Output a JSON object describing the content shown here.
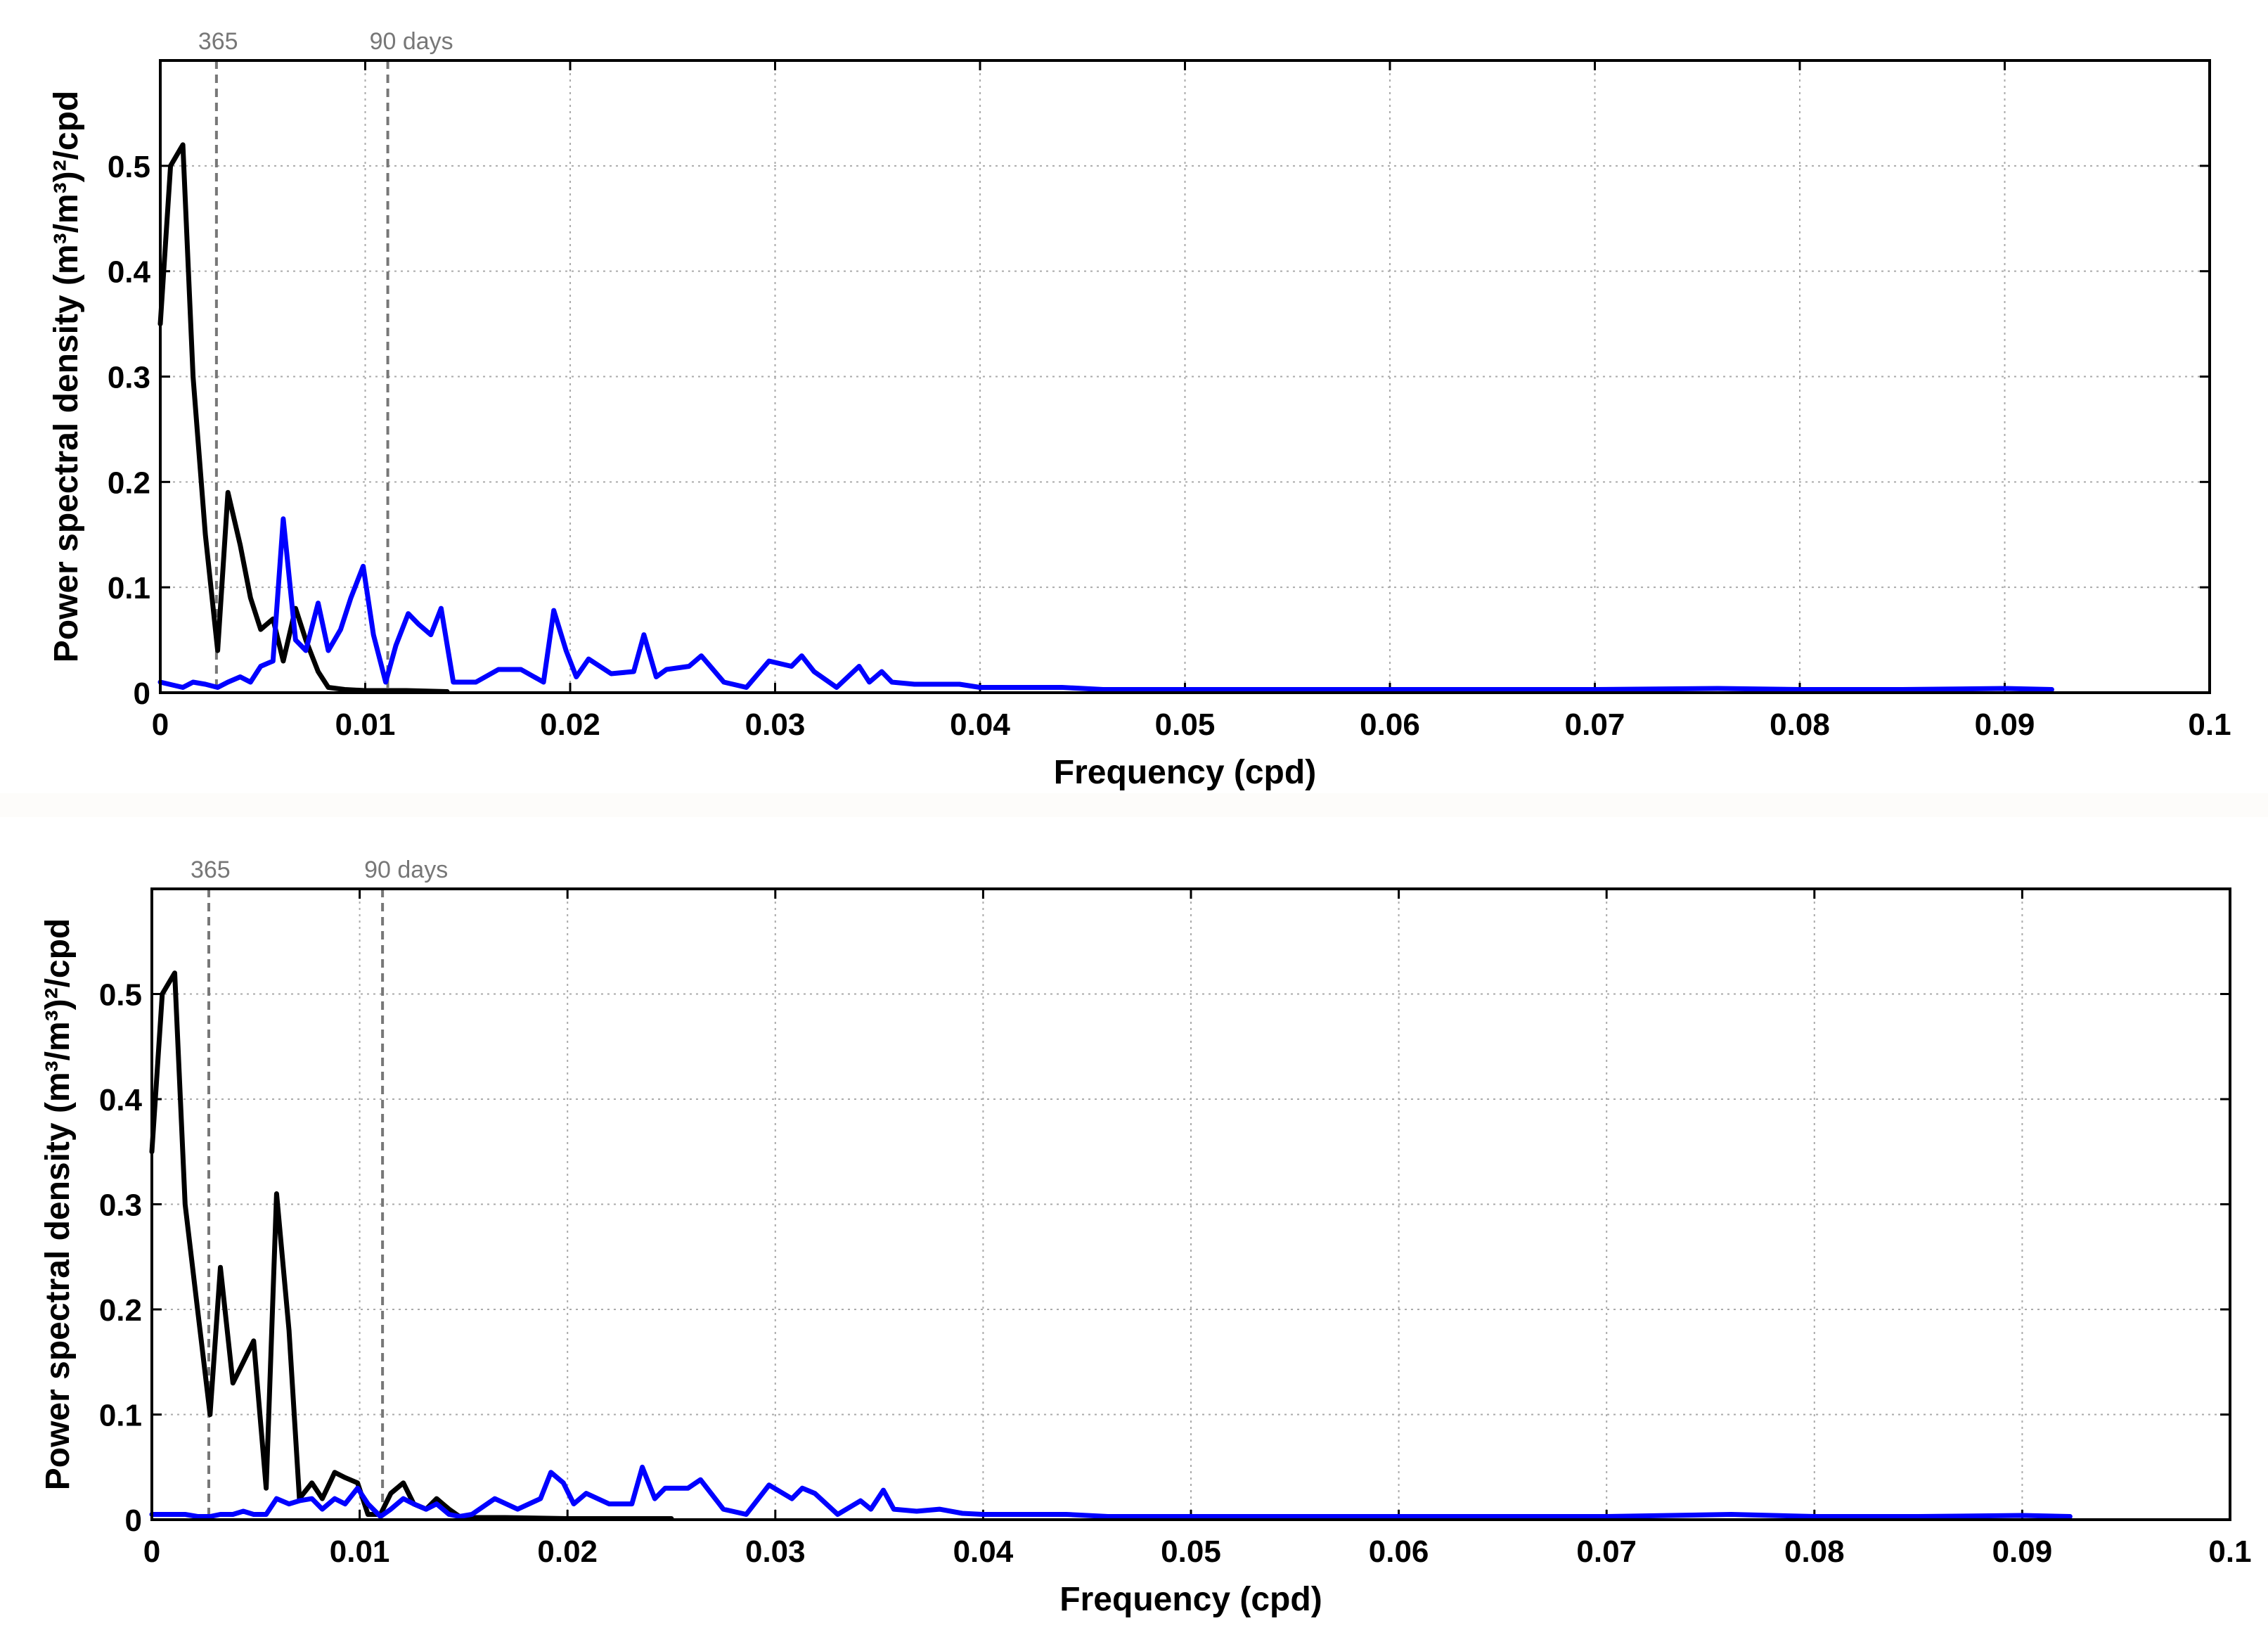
{
  "colors": {
    "blue": "#0000ff",
    "black": "#000000",
    "marker": "#777777",
    "grid": "#aaaaaa"
  },
  "chart_data": [
    {
      "type": "line",
      "xlabel": "Frequency (cpd)",
      "ylabel": "Power spectral density (m³/m³)²/cpd",
      "xlim": [
        0,
        0.1
      ],
      "ylim": [
        0,
        0.6
      ],
      "xticks": [
        "0",
        "0.01",
        "0.02",
        "0.03",
        "0.04",
        "0.05",
        "0.06",
        "0.07",
        "0.08",
        "0.09",
        "0.1"
      ],
      "yticks": [
        "0",
        "0.1",
        "0.2",
        "0.3",
        "0.4",
        "0.5"
      ],
      "grid": true,
      "markers": [
        {
          "label": "365",
          "x": 0.00274
        },
        {
          "label": "90 days",
          "x": 0.0111
        }
      ],
      "series": [
        {
          "color": "black",
          "x": [
            0,
            0.0005,
            0.0011,
            0.0016,
            0.0022,
            0.0028,
            0.0033,
            0.0039,
            0.0044,
            0.0049,
            0.0055,
            0.006,
            0.0066,
            0.0071,
            0.0077,
            0.0082,
            0.009,
            0.01,
            0.011,
            0.012,
            0.014
          ],
          "y": [
            0.35,
            0.5,
            0.52,
            0.3,
            0.15,
            0.04,
            0.19,
            0.14,
            0.09,
            0.06,
            0.07,
            0.03,
            0.08,
            0.05,
            0.02,
            0.005,
            0.003,
            0.002,
            0.002,
            0.002,
            0.001
          ]
        },
        {
          "color": "blue",
          "x": [
            0,
            0.0011,
            0.0016,
            0.0022,
            0.0028,
            0.0033,
            0.0039,
            0.0044,
            0.0049,
            0.0055,
            0.006,
            0.0066,
            0.0071,
            0.0077,
            0.0082,
            0.0088,
            0.0093,
            0.0099,
            0.0104,
            0.011,
            0.0115,
            0.0121,
            0.0126,
            0.0132,
            0.0137,
            0.0143,
            0.0148,
            0.0154,
            0.0165,
            0.0176,
            0.0187,
            0.0192,
            0.0198,
            0.0203,
            0.0209,
            0.022,
            0.0231,
            0.0236,
            0.0242,
            0.0247,
            0.0258,
            0.0264,
            0.0275,
            0.0286,
            0.0297,
            0.0308,
            0.0313,
            0.0319,
            0.033,
            0.0341,
            0.0346,
            0.0352,
            0.0357,
            0.0368,
            0.0379,
            0.039,
            0.04,
            0.042,
            0.044,
            0.046,
            0.05,
            0.06,
            0.07,
            0.076,
            0.08,
            0.085,
            0.09,
            0.0923
          ],
          "y": [
            0.01,
            0.005,
            0.01,
            0.008,
            0.005,
            0.01,
            0.015,
            0.01,
            0.025,
            0.03,
            0.165,
            0.05,
            0.04,
            0.085,
            0.04,
            0.06,
            0.09,
            0.12,
            0.055,
            0.01,
            0.045,
            0.075,
            0.065,
            0.055,
            0.08,
            0.01,
            0.01,
            0.01,
            0.022,
            0.022,
            0.01,
            0.078,
            0.04,
            0.015,
            0.032,
            0.018,
            0.02,
            0.055,
            0.015,
            0.022,
            0.025,
            0.035,
            0.01,
            0.005,
            0.03,
            0.025,
            0.035,
            0.02,
            0.005,
            0.025,
            0.01,
            0.02,
            0.01,
            0.008,
            0.008,
            0.008,
            0.005,
            0.005,
            0.005,
            0.003,
            0.003,
            0.003,
            0.003,
            0.004,
            0.003,
            0.003,
            0.004,
            0.003
          ]
        }
      ]
    },
    {
      "type": "line",
      "xlabel": "Frequency (cpd)",
      "ylabel": "Power spectral density (m³/m³)²/cpd",
      "xlim": [
        0,
        0.1
      ],
      "ylim": [
        0,
        0.6
      ],
      "xticks": [
        "0",
        "0.01",
        "0.02",
        "0.03",
        "0.04",
        "0.05",
        "0.06",
        "0.07",
        "0.08",
        "0.09",
        "0.1"
      ],
      "yticks": [
        "0",
        "0.1",
        "0.2",
        "0.3",
        "0.4",
        "0.5"
      ],
      "grid": true,
      "markers": [
        {
          "label": "365",
          "x": 0.00274
        },
        {
          "label": "90 days",
          "x": 0.0111
        }
      ],
      "series": [
        {
          "color": "black",
          "x": [
            0,
            0.0005,
            0.0011,
            0.0016,
            0.0022,
            0.0028,
            0.0033,
            0.0039,
            0.0044,
            0.0049,
            0.0055,
            0.006,
            0.0066,
            0.0071,
            0.0077,
            0.0082,
            0.0088,
            0.0093,
            0.0099,
            0.0104,
            0.011,
            0.0115,
            0.0121,
            0.0126,
            0.0132,
            0.0137,
            0.0143,
            0.0148,
            0.0154,
            0.017,
            0.02,
            0.025
          ],
          "y": [
            0.35,
            0.5,
            0.52,
            0.3,
            0.2,
            0.1,
            0.24,
            0.13,
            0.15,
            0.17,
            0.03,
            0.31,
            0.18,
            0.02,
            0.035,
            0.02,
            0.045,
            0.04,
            0.035,
            0.005,
            0.005,
            0.025,
            0.035,
            0.015,
            0.01,
            0.02,
            0.01,
            0.003,
            0.002,
            0.002,
            0.001,
            0.001
          ]
        },
        {
          "color": "blue",
          "x": [
            0,
            0.0011,
            0.0016,
            0.0022,
            0.0028,
            0.0033,
            0.0039,
            0.0044,
            0.0049,
            0.0055,
            0.006,
            0.0066,
            0.0071,
            0.0077,
            0.0082,
            0.0088,
            0.0093,
            0.0099,
            0.0104,
            0.011,
            0.0115,
            0.0121,
            0.0126,
            0.0132,
            0.0137,
            0.0143,
            0.0148,
            0.0154,
            0.0165,
            0.0176,
            0.0187,
            0.0192,
            0.0198,
            0.0203,
            0.0209,
            0.022,
            0.0231,
            0.0236,
            0.0242,
            0.0247,
            0.0258,
            0.0264,
            0.0275,
            0.0286,
            0.0297,
            0.0308,
            0.0313,
            0.0319,
            0.033,
            0.0341,
            0.0346,
            0.0352,
            0.0357,
            0.0368,
            0.0379,
            0.039,
            0.04,
            0.042,
            0.044,
            0.046,
            0.05,
            0.06,
            0.07,
            0.076,
            0.08,
            0.085,
            0.09,
            0.0923
          ],
          "y": [
            0.005,
            0.005,
            0.005,
            0.003,
            0.003,
            0.005,
            0.005,
            0.008,
            0.005,
            0.005,
            0.02,
            0.015,
            0.018,
            0.02,
            0.01,
            0.02,
            0.015,
            0.03,
            0.015,
            0.003,
            0.01,
            0.02,
            0.015,
            0.01,
            0.015,
            0.005,
            0.003,
            0.005,
            0.02,
            0.01,
            0.02,
            0.045,
            0.035,
            0.015,
            0.025,
            0.015,
            0.015,
            0.05,
            0.02,
            0.03,
            0.03,
            0.038,
            0.01,
            0.005,
            0.033,
            0.02,
            0.03,
            0.025,
            0.005,
            0.018,
            0.01,
            0.028,
            0.01,
            0.008,
            0.01,
            0.006,
            0.005,
            0.005,
            0.005,
            0.003,
            0.003,
            0.003,
            0.003,
            0.005,
            0.003,
            0.003,
            0.004,
            0.003
          ]
        }
      ]
    }
  ]
}
